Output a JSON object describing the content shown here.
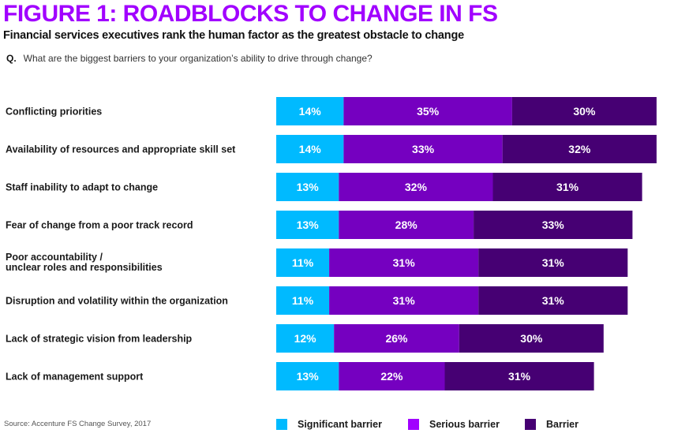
{
  "title": "FIGURE 1: ROADBLOCKS TO CHANGE IN FS",
  "subtitle": "Financial services executives rank the human factor as the greatest obstacle to change",
  "question": {
    "marker": "Q.",
    "text": "What are the biggest barriers to your organization’s ability to drive through change?"
  },
  "source": "Source: Accenture FS Change Survey, 2017",
  "colors": {
    "significant": "#00baff",
    "serious": "#7500c0",
    "barrier": "#460073",
    "title": "#a100ff",
    "legend_serious": "#a100ff"
  },
  "chart_data": {
    "type": "bar",
    "orientation": "horizontal",
    "stacked": true,
    "title": "FIGURE 1: ROADBLOCKS TO CHANGE IN FS",
    "subtitle": "Financial services executives rank the human factor as the greatest obstacle to change",
    "xlabel": "",
    "ylabel": "",
    "unit": "%",
    "categories": [
      [
        "Conflicting priorities"
      ],
      [
        "Availability of resources and appropriate skill set"
      ],
      [
        "Staff inability to adapt to change"
      ],
      [
        "Fear of change from a poor track record"
      ],
      [
        "Poor accountability /",
        "unclear roles and responsibilities"
      ],
      [
        "Disruption and volatility within the organization"
      ],
      [
        "Lack of strategic vision from leadership"
      ],
      [
        "Lack of management support"
      ]
    ],
    "series": [
      {
        "name": "Significant barrier",
        "color": "#00baff",
        "values": [
          14,
          14,
          13,
          13,
          11,
          11,
          12,
          13
        ]
      },
      {
        "name": "Serious barrier",
        "color": "#7500c0",
        "values": [
          35,
          33,
          32,
          28,
          31,
          31,
          26,
          22
        ]
      },
      {
        "name": "Barrier",
        "color": "#460073",
        "values": [
          30,
          32,
          31,
          33,
          31,
          31,
          30,
          31
        ]
      }
    ],
    "data_labels": true,
    "grid": false,
    "legend": {
      "position": "bottom-right",
      "entries": [
        "Significant barrier",
        "Serious barrier",
        "Barrier"
      ],
      "swatch_colors": [
        "#00baff",
        "#a100ff",
        "#460073"
      ]
    }
  }
}
